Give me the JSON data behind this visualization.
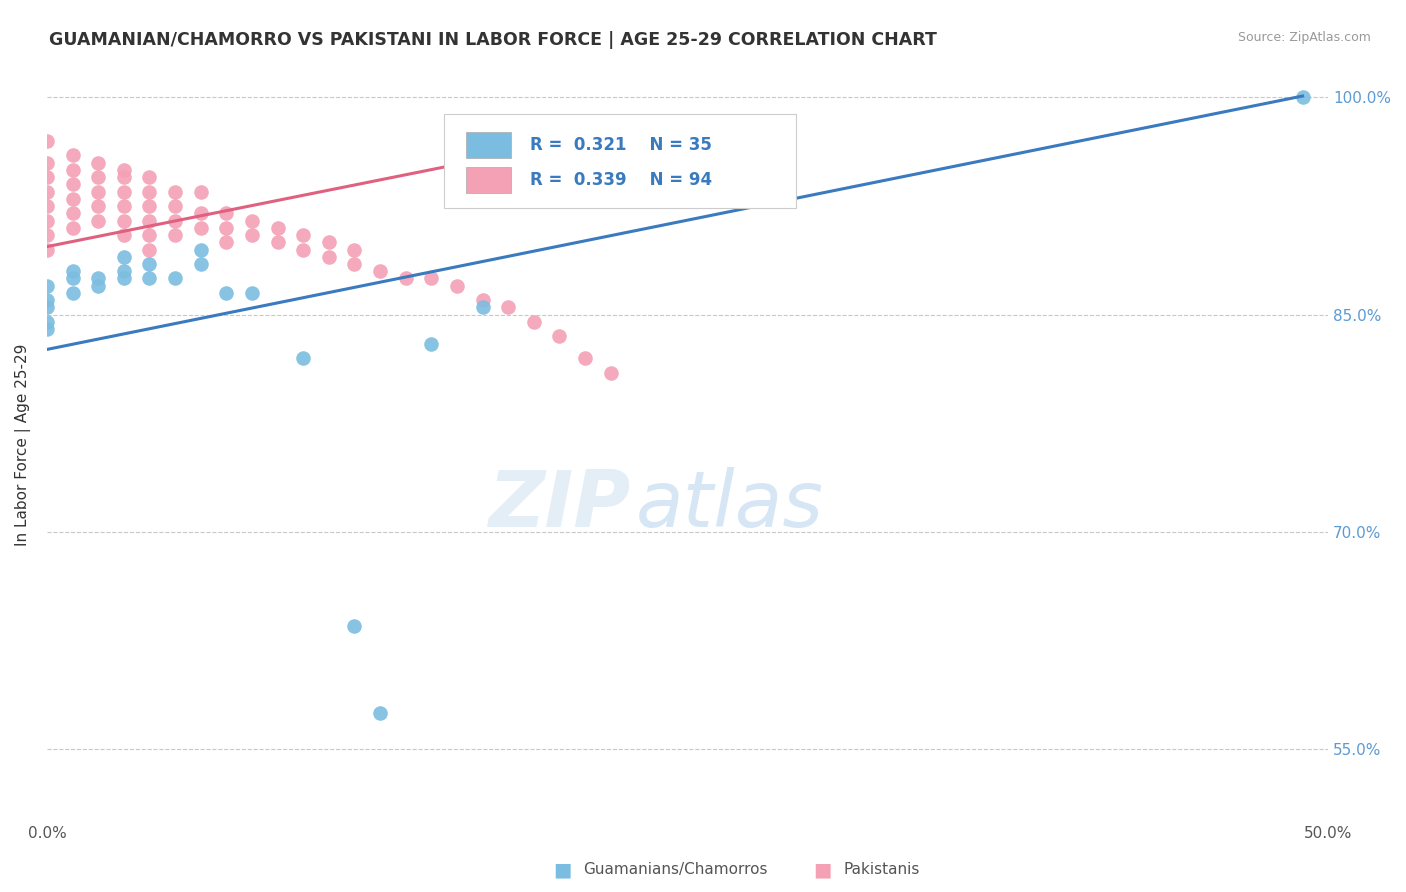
{
  "title": "GUAMANIAN/CHAMORRO VS PAKISTANI IN LABOR FORCE | AGE 25-29 CORRELATION CHART",
  "source": "Source: ZipAtlas.com",
  "ylabel": "In Labor Force | Age 25-29",
  "xlim": [
    0.0,
    0.5
  ],
  "ylim": [
    0.5,
    1.02
  ],
  "blue_color": "#7bbde0",
  "pink_color": "#f4a0b5",
  "blue_line_color": "#3a7abf",
  "pink_line_color": "#e06080",
  "blue_scatter_x": [
    0.0,
    0.0,
    0.0,
    0.0,
    0.0,
    0.01,
    0.01,
    0.01,
    0.02,
    0.02,
    0.03,
    0.03,
    0.03,
    0.04,
    0.04,
    0.05,
    0.06,
    0.06,
    0.07,
    0.08,
    0.1,
    0.12,
    0.13,
    0.15,
    0.17,
    0.49
  ],
  "blue_scatter_y": [
    0.87,
    0.86,
    0.855,
    0.845,
    0.84,
    0.88,
    0.875,
    0.865,
    0.875,
    0.87,
    0.89,
    0.88,
    0.875,
    0.885,
    0.875,
    0.875,
    0.895,
    0.885,
    0.865,
    0.865,
    0.82,
    0.635,
    0.575,
    0.83,
    0.855,
    1.0
  ],
  "pink_scatter_x": [
    0.0,
    0.0,
    0.0,
    0.0,
    0.0,
    0.0,
    0.0,
    0.0,
    0.01,
    0.01,
    0.01,
    0.01,
    0.01,
    0.01,
    0.02,
    0.02,
    0.02,
    0.02,
    0.02,
    0.03,
    0.03,
    0.03,
    0.03,
    0.03,
    0.03,
    0.04,
    0.04,
    0.04,
    0.04,
    0.04,
    0.04,
    0.05,
    0.05,
    0.05,
    0.05,
    0.06,
    0.06,
    0.06,
    0.07,
    0.07,
    0.07,
    0.08,
    0.08,
    0.09,
    0.09,
    0.1,
    0.1,
    0.11,
    0.11,
    0.12,
    0.12,
    0.13,
    0.14,
    0.15,
    0.16,
    0.17,
    0.18,
    0.19,
    0.2,
    0.21,
    0.22
  ],
  "pink_scatter_y": [
    0.97,
    0.955,
    0.945,
    0.935,
    0.925,
    0.915,
    0.905,
    0.895,
    0.96,
    0.95,
    0.94,
    0.93,
    0.92,
    0.91,
    0.955,
    0.945,
    0.935,
    0.925,
    0.915,
    0.95,
    0.945,
    0.935,
    0.925,
    0.915,
    0.905,
    0.945,
    0.935,
    0.925,
    0.915,
    0.905,
    0.895,
    0.935,
    0.925,
    0.915,
    0.905,
    0.935,
    0.92,
    0.91,
    0.92,
    0.91,
    0.9,
    0.915,
    0.905,
    0.91,
    0.9,
    0.905,
    0.895,
    0.9,
    0.89,
    0.895,
    0.885,
    0.88,
    0.875,
    0.875,
    0.87,
    0.86,
    0.855,
    0.845,
    0.835,
    0.82,
    0.81
  ],
  "blue_trendline_x": [
    0.0,
    0.49
  ],
  "blue_trendline_y": [
    0.826,
    1.001
  ],
  "pink_trendline_x": [
    0.0,
    0.22
  ],
  "pink_trendline_y": [
    0.897,
    0.975
  ],
  "ytick_positions": [
    1.0,
    0.85,
    0.7,
    0.55
  ],
  "ytick_labels": [
    "100.0%",
    "85.0%",
    "70.0%",
    "55.0%"
  ]
}
